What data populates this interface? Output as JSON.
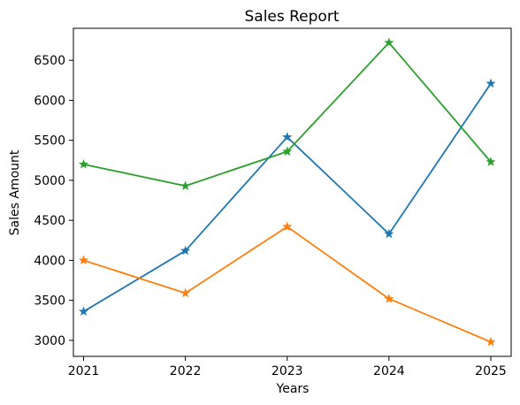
{
  "chart_data": {
    "type": "line",
    "title": "Sales Report",
    "xlabel": "Years",
    "ylabel": "Sales Amount",
    "x": [
      2021,
      2022,
      2023,
      2024,
      2025
    ],
    "x_ticks": [
      "2021",
      "2022",
      "2023",
      "2024",
      "2025"
    ],
    "y_ticks": [
      3000,
      3500,
      4000,
      4500,
      5000,
      5500,
      6000,
      6500
    ],
    "xlim": [
      2020.9,
      2025.2
    ],
    "ylim": [
      2800,
      6900
    ],
    "grid": false,
    "marker": "star",
    "series": [
      {
        "color": "#1f77b4",
        "values": [
          3360,
          4120,
          5540,
          4330,
          6210
        ]
      },
      {
        "color": "#ff7f0e",
        "values": [
          4000,
          3590,
          4420,
          3520,
          2980
        ]
      },
      {
        "color": "#2ca02c",
        "values": [
          5200,
          4930,
          5360,
          6720,
          5230
        ]
      }
    ]
  }
}
